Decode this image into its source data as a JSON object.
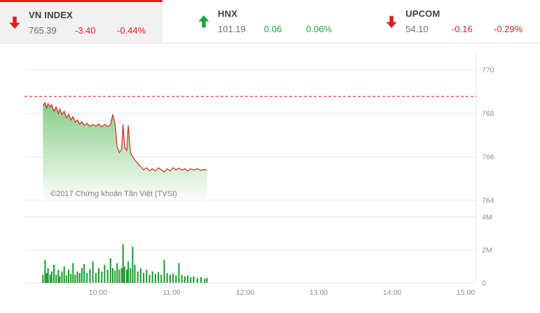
{
  "indices": [
    {
      "name": "VN INDEX",
      "value": "765.39",
      "change": "-3.40",
      "pct": "-0.44%",
      "direction": "down",
      "active": true
    },
    {
      "name": "HNX",
      "value": "101.19",
      "change": "0.06",
      "pct": "0.06%",
      "direction": "up",
      "active": false
    },
    {
      "name": "UPCOM",
      "value": "54.10",
      "change": "-0.16",
      "pct": "-0.29%",
      "direction": "down",
      "active": false
    }
  ],
  "watermark": "©2017 Chứng khoán Tân Việt (TVSI)",
  "colors": {
    "down": "#e21d23",
    "up": "#16a53f",
    "line": "#d42a1e",
    "volume": "#179a2b",
    "grid": "#e6e6e6",
    "axis_text": "#8c8c8c",
    "active_bg": "#f1f1f1",
    "area_top": "#86cd86",
    "area_bottom": "#fbfefb"
  },
  "chart_data": [
    {
      "type": "area",
      "name": "vn-index-intraday-price",
      "ylabel_side": "right",
      "ylim": [
        764,
        770
      ],
      "yticks": [
        770,
        768,
        766,
        764
      ],
      "ref_line": 768.79,
      "xticks": [
        {
          "t": 10,
          "label": "10:00"
        },
        {
          "t": 11,
          "label": "11:00"
        },
        {
          "t": 12,
          "label": "12:00"
        },
        {
          "t": 13,
          "label": "13:00"
        },
        {
          "t": 14,
          "label": "14:00"
        },
        {
          "t": 15,
          "label": "15:00"
        }
      ],
      "points": [
        [
          9.25,
          768.35
        ],
        [
          9.28,
          768.5
        ],
        [
          9.3,
          768.25
        ],
        [
          9.32,
          768.45
        ],
        [
          9.35,
          768.3
        ],
        [
          9.37,
          768.4
        ],
        [
          9.4,
          768.1
        ],
        [
          9.43,
          768.3
        ],
        [
          9.46,
          768.0
        ],
        [
          9.48,
          768.2
        ],
        [
          9.51,
          767.95
        ],
        [
          9.54,
          768.1
        ],
        [
          9.57,
          767.8
        ],
        [
          9.6,
          767.95
        ],
        [
          9.63,
          767.7
        ],
        [
          9.66,
          767.85
        ],
        [
          9.69,
          767.6
        ],
        [
          9.72,
          767.7
        ],
        [
          9.75,
          767.5
        ],
        [
          9.78,
          767.62
        ],
        [
          9.81,
          767.45
        ],
        [
          9.85,
          767.55
        ],
        [
          9.89,
          767.4
        ],
        [
          9.93,
          767.5
        ],
        [
          9.97,
          767.42
        ],
        [
          10.01,
          767.52
        ],
        [
          10.05,
          767.38
        ],
        [
          10.09,
          767.5
        ],
        [
          10.13,
          767.4
        ],
        [
          10.17,
          767.48
        ],
        [
          10.2,
          767.95
        ],
        [
          10.23,
          767.55
        ],
        [
          10.26,
          766.45
        ],
        [
          10.29,
          766.2
        ],
        [
          10.32,
          766.35
        ],
        [
          10.34,
          767.5
        ],
        [
          10.36,
          766.45
        ],
        [
          10.39,
          766.3
        ],
        [
          10.41,
          767.45
        ],
        [
          10.44,
          766.2
        ],
        [
          10.47,
          766.0
        ],
        [
          10.5,
          765.85
        ],
        [
          10.54,
          765.7
        ],
        [
          10.58,
          765.55
        ],
        [
          10.62,
          765.4
        ],
        [
          10.66,
          765.5
        ],
        [
          10.7,
          765.35
        ],
        [
          10.74,
          765.45
        ],
        [
          10.78,
          765.35
        ],
        [
          10.82,
          765.5
        ],
        [
          10.86,
          765.4
        ],
        [
          10.9,
          765.3
        ],
        [
          10.94,
          765.45
        ],
        [
          10.98,
          765.35
        ],
        [
          11.02,
          765.5
        ],
        [
          11.06,
          765.4
        ],
        [
          11.1,
          765.48
        ],
        [
          11.14,
          765.38
        ],
        [
          11.18,
          765.45
        ],
        [
          11.22,
          765.35
        ],
        [
          11.26,
          765.45
        ],
        [
          11.3,
          765.4
        ],
        [
          11.35,
          765.45
        ],
        [
          11.4,
          765.38
        ],
        [
          11.45,
          765.42
        ],
        [
          11.48,
          765.39
        ]
      ]
    },
    {
      "type": "bar",
      "name": "vn-index-intraday-volume",
      "ylim": [
        0,
        4
      ],
      "yticks": [
        {
          "v": 4,
          "label": "4M"
        },
        {
          "v": 2,
          "label": "2M"
        },
        {
          "v": 0,
          "label": "0"
        }
      ],
      "points": [
        [
          9.25,
          0.5
        ],
        [
          9.28,
          1.4
        ],
        [
          9.3,
          0.6
        ],
        [
          9.32,
          0.9
        ],
        [
          9.35,
          0.5
        ],
        [
          9.37,
          0.7
        ],
        [
          9.4,
          1.1
        ],
        [
          9.43,
          0.5
        ],
        [
          9.46,
          0.8
        ],
        [
          9.48,
          0.4
        ],
        [
          9.51,
          0.7
        ],
        [
          9.54,
          1.0
        ],
        [
          9.57,
          0.45
        ],
        [
          9.6,
          0.8
        ],
        [
          9.63,
          0.55
        ],
        [
          9.66,
          1.2
        ],
        [
          9.69,
          0.5
        ],
        [
          9.72,
          0.7
        ],
        [
          9.75,
          0.6
        ],
        [
          9.78,
          0.9
        ],
        [
          9.81,
          1.15
        ],
        [
          9.85,
          0.6
        ],
        [
          9.89,
          0.85
        ],
        [
          9.93,
          1.3
        ],
        [
          9.97,
          0.6
        ],
        [
          10.01,
          0.9
        ],
        [
          10.05,
          0.7
        ],
        [
          10.09,
          1.1
        ],
        [
          10.13,
          0.8
        ],
        [
          10.17,
          1.5
        ],
        [
          10.2,
          0.9
        ],
        [
          10.23,
          0.75
        ],
        [
          10.26,
          1.2
        ],
        [
          10.29,
          0.8
        ],
        [
          10.32,
          0.9
        ],
        [
          10.34,
          2.35
        ],
        [
          10.36,
          1.0
        ],
        [
          10.39,
          0.8
        ],
        [
          10.41,
          1.3
        ],
        [
          10.44,
          0.9
        ],
        [
          10.47,
          2.2
        ],
        [
          10.5,
          1.1
        ],
        [
          10.54,
          0.7
        ],
        [
          10.58,
          0.9
        ],
        [
          10.62,
          0.6
        ],
        [
          10.66,
          0.8
        ],
        [
          10.7,
          0.5
        ],
        [
          10.74,
          0.7
        ],
        [
          10.78,
          0.55
        ],
        [
          10.82,
          0.65
        ],
        [
          10.86,
          0.5
        ],
        [
          10.9,
          1.4
        ],
        [
          10.94,
          0.6
        ],
        [
          10.98,
          0.5
        ],
        [
          11.02,
          0.55
        ],
        [
          11.06,
          0.45
        ],
        [
          11.1,
          1.2
        ],
        [
          11.14,
          0.5
        ],
        [
          11.18,
          0.4
        ],
        [
          11.22,
          0.45
        ],
        [
          11.26,
          0.35
        ],
        [
          11.3,
          0.4
        ],
        [
          11.35,
          0.3
        ],
        [
          11.4,
          0.35
        ],
        [
          11.45,
          0.25
        ],
        [
          11.48,
          0.3
        ]
      ]
    }
  ]
}
